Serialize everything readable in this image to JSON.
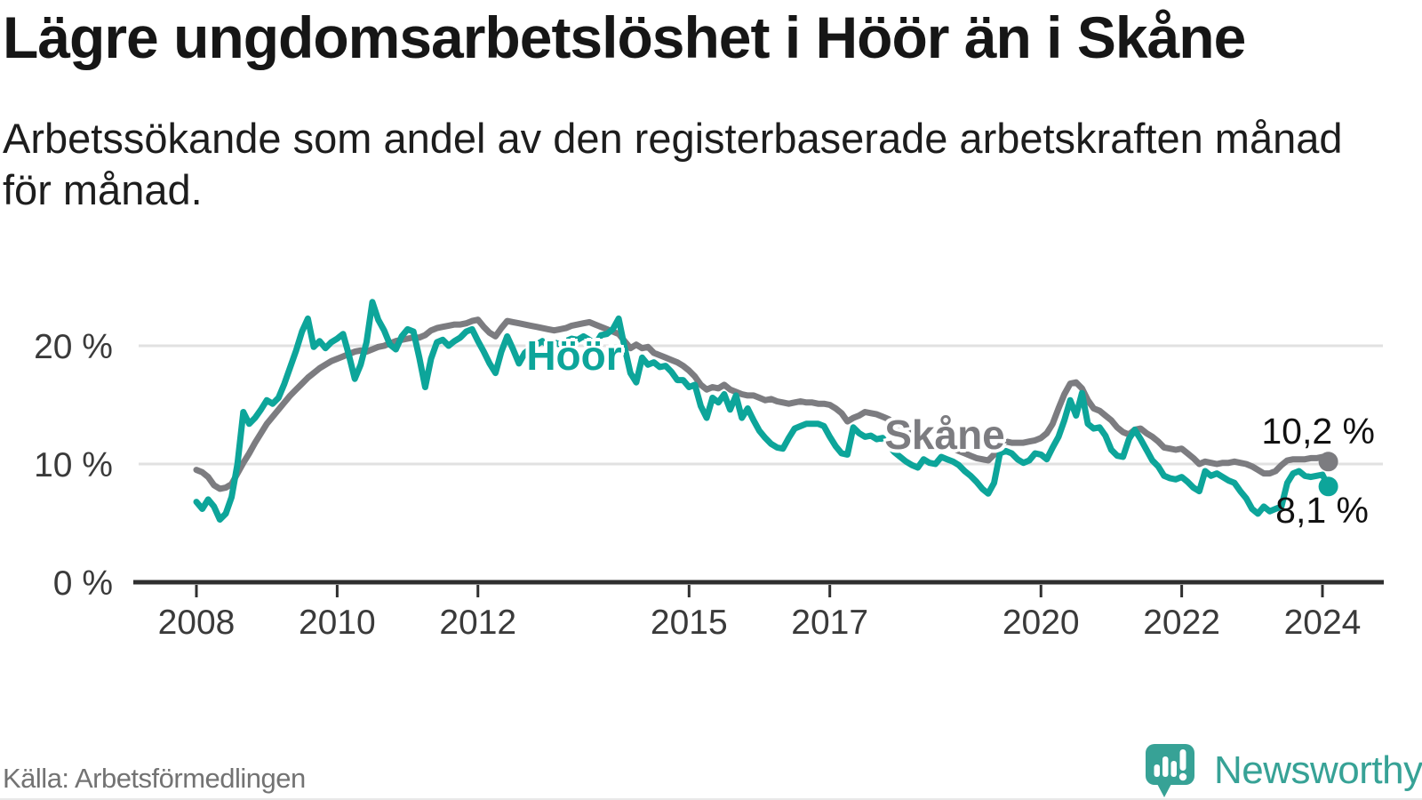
{
  "chart": {
    "title": "Lägre ungdomsarbetslöshet i Höör än i Skåne",
    "subtitle_line1": "Arbetssökande som andel av den registerbaserade arbetskraften månad",
    "subtitle_line2": "för månad.",
    "source": "Källa: Arbetsförmedlingen",
    "brand": "Newsworthy"
  },
  "chart_data": {
    "type": "line",
    "unit": "%",
    "frequency": "monthly",
    "x_start": "2008-01",
    "x_end": "2024-02",
    "ylim": [
      0,
      24
    ],
    "grid": "horizontal",
    "colors": {
      "hoor_teal": "#0da59a",
      "skane_gray": "#7c7c80",
      "gridline": "#e1e1e1",
      "axis": "#2f2f2f",
      "brand_teal": "#37a296"
    },
    "y_ticks": [
      {
        "value": 20,
        "label": "20 %"
      },
      {
        "value": 10,
        "label": "10 %"
      },
      {
        "value": 0,
        "label": "0 %"
      }
    ],
    "x_ticks": [
      {
        "year": 2008,
        "label": "2008"
      },
      {
        "year": 2010,
        "label": "2010"
      },
      {
        "year": 2012,
        "label": "2012"
      },
      {
        "year": 2015,
        "label": "2015"
      },
      {
        "year": 2017,
        "label": "2017"
      },
      {
        "year": 2020,
        "label": "2020"
      },
      {
        "year": 2022,
        "label": "2022"
      },
      {
        "year": 2024,
        "label": "2024"
      }
    ],
    "series": [
      {
        "name": "Höör",
        "color": "#0da59a",
        "end_label": "8,1 %",
        "end_value": 8.1,
        "values": [
          6.8,
          6.2,
          7.0,
          6.4,
          5.3,
          5.8,
          7.2,
          10.0,
          14.4,
          13.4,
          13.9,
          14.6,
          15.4,
          15.1,
          15.6,
          16.8,
          18.2,
          19.6,
          21.2,
          22.3,
          19.9,
          20.4,
          19.8,
          20.3,
          20.6,
          21.0,
          19.2,
          17.2,
          18.4,
          20.3,
          23.7,
          22.2,
          21.3,
          20.1,
          19.7,
          20.8,
          21.4,
          21.2,
          19.0,
          16.5,
          18.9,
          20.3,
          20.5,
          20.0,
          20.4,
          20.7,
          21.2,
          21.4,
          20.4,
          19.5,
          18.5,
          17.7,
          19.5,
          20.8,
          19.7,
          18.5,
          19.4,
          19.8,
          20.1,
          20.4,
          20.0,
          20.3,
          20.1,
          20.4,
          20.6,
          20.5,
          20.8,
          20.5,
          20.1,
          20.9,
          21.0,
          21.4,
          22.3,
          19.9,
          17.7,
          16.9,
          19.0,
          18.4,
          18.6,
          18.2,
          18.3,
          17.8,
          17.1,
          17.1,
          16.5,
          16.7,
          14.9,
          13.9,
          15.6,
          15.2,
          15.9,
          14.6,
          15.8,
          13.9,
          14.7,
          13.7,
          12.8,
          12.2,
          11.7,
          11.4,
          11.3,
          12.2,
          13.0,
          13.2,
          13.4,
          13.4,
          13.4,
          13.2,
          12.3,
          11.5,
          10.9,
          10.8,
          13.1,
          12.6,
          12.3,
          12.4,
          12.1,
          12.2,
          11.6,
          11.0,
          10.6,
          10.2,
          9.9,
          9.7,
          10.4,
          10.1,
          10.0,
          10.6,
          10.4,
          10.2,
          9.9,
          9.4,
          9.0,
          8.5,
          7.9,
          7.5,
          8.4,
          10.9,
          11.1,
          10.9,
          10.4,
          10.1,
          10.3,
          10.9,
          10.8,
          10.4,
          11.4,
          12.3,
          13.7,
          15.4,
          14.1,
          16.0,
          13.4,
          13.0,
          13.1,
          12.4,
          11.2,
          10.7,
          10.6,
          12.1,
          12.9,
          12.1,
          11.2,
          10.3,
          9.8,
          9.0,
          8.8,
          8.7,
          8.9,
          8.5,
          8.0,
          7.7,
          9.4,
          9.0,
          9.2,
          8.9,
          8.6,
          8.4,
          7.7,
          7.1,
          6.2,
          5.8,
          6.4,
          6.0,
          6.2,
          6.4,
          8.4,
          9.2,
          9.4,
          9.0,
          8.9,
          9.0,
          9.1,
          8.1
        ]
      },
      {
        "name": "Skåne",
        "color": "#7c7c80",
        "end_label": "10,2 %",
        "end_value": 10.2,
        "values": [
          9.5,
          9.3,
          8.9,
          8.2,
          7.9,
          8.0,
          8.3,
          9.2,
          10.1,
          10.9,
          11.8,
          12.6,
          13.4,
          14.0,
          14.6,
          15.2,
          15.8,
          16.3,
          16.8,
          17.3,
          17.7,
          18.1,
          18.4,
          18.7,
          18.9,
          19.1,
          19.3,
          19.5,
          19.6,
          19.5,
          19.7,
          19.9,
          20.0,
          20.2,
          20.4,
          20.5,
          20.6,
          20.7,
          20.7,
          20.9,
          21.3,
          21.5,
          21.6,
          21.7,
          21.8,
          21.8,
          21.9,
          22.1,
          22.2,
          21.6,
          21.1,
          20.8,
          21.5,
          22.1,
          22.0,
          21.9,
          21.8,
          21.7,
          21.6,
          21.5,
          21.4,
          21.3,
          21.4,
          21.5,
          21.7,
          21.8,
          21.9,
          22.0,
          21.8,
          21.6,
          21.4,
          21.2,
          21.0,
          20.4,
          19.8,
          20.1,
          19.8,
          19.9,
          19.4,
          19.2,
          19.0,
          18.8,
          18.6,
          18.3,
          17.9,
          17.4,
          16.7,
          16.3,
          16.5,
          16.4,
          16.7,
          16.3,
          16.1,
          15.9,
          15.8,
          15.8,
          15.6,
          15.4,
          15.5,
          15.3,
          15.2,
          15.1,
          15.2,
          15.3,
          15.2,
          15.2,
          15.1,
          15.1,
          15.0,
          14.7,
          14.3,
          13.6,
          13.9,
          14.1,
          14.4,
          14.3,
          14.2,
          14.0,
          13.8,
          13.5,
          13.2,
          12.9,
          12.6,
          12.3,
          12.1,
          11.9,
          11.8,
          11.6,
          11.5,
          11.3,
          11.1,
          10.9,
          10.7,
          10.5,
          10.4,
          10.3,
          10.8,
          11.5,
          11.9,
          11.8,
          11.8,
          11.8,
          11.9,
          12.0,
          12.2,
          12.6,
          13.4,
          14.7,
          15.9,
          16.8,
          16.9,
          16.4,
          15.4,
          14.7,
          14.5,
          14.1,
          13.7,
          13.1,
          12.7,
          12.5,
          12.9,
          13.0,
          12.6,
          12.3,
          11.9,
          11.4,
          11.3,
          11.2,
          11.3,
          10.9,
          10.5,
          10.0,
          10.2,
          10.1,
          10.0,
          10.1,
          10.1,
          10.2,
          10.1,
          10.0,
          9.8,
          9.5,
          9.2,
          9.2,
          9.4,
          9.9,
          10.3,
          10.4,
          10.4,
          10.4,
          10.5,
          10.5,
          10.6,
          10.2
        ]
      }
    ]
  }
}
